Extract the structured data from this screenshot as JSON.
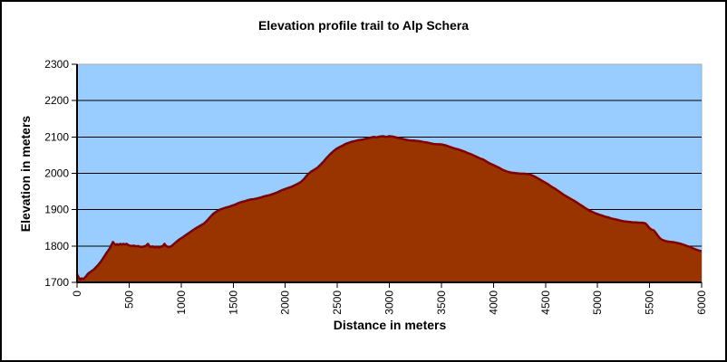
{
  "chart_data": {
    "type": "area",
    "title": "Elevation profile trail to Alp Schera",
    "xlabel": "Distance in meters",
    "ylabel": "Elevation in meters",
    "xlim": [
      0,
      6000
    ],
    "ylim": [
      1700,
      2300
    ],
    "x_ticks": [
      0,
      500,
      1000,
      1500,
      2000,
      2500,
      3000,
      3500,
      4000,
      4500,
      5000,
      5500,
      6000
    ],
    "y_ticks": [
      1700,
      1800,
      1900,
      2000,
      2100,
      2200,
      2300
    ],
    "grid": true,
    "legend": false,
    "colors": {
      "plot_bg": "#99CCFF",
      "plot_border": "#ABABAB",
      "grid": "#000000",
      "axis": "#000000",
      "area_fill": "#993300",
      "profile_line": "#7F0000",
      "frame_border": "#000000",
      "background": "#FFFFFF"
    },
    "series": [
      {
        "name": "Elevation",
        "points": [
          [
            0,
            1722
          ],
          [
            15,
            1714
          ],
          [
            30,
            1708
          ],
          [
            45,
            1711
          ],
          [
            60,
            1709
          ],
          [
            75,
            1713
          ],
          [
            90,
            1718
          ],
          [
            105,
            1724
          ],
          [
            120,
            1727
          ],
          [
            140,
            1731
          ],
          [
            160,
            1735
          ],
          [
            180,
            1741
          ],
          [
            200,
            1747
          ],
          [
            220,
            1754
          ],
          [
            240,
            1762
          ],
          [
            260,
            1771
          ],
          [
            280,
            1780
          ],
          [
            300,
            1788
          ],
          [
            315,
            1794
          ],
          [
            330,
            1803
          ],
          [
            345,
            1811
          ],
          [
            355,
            1807
          ],
          [
            370,
            1803
          ],
          [
            385,
            1805
          ],
          [
            400,
            1803
          ],
          [
            415,
            1806
          ],
          [
            430,
            1804
          ],
          [
            445,
            1806
          ],
          [
            460,
            1804
          ],
          [
            475,
            1806
          ],
          [
            490,
            1803
          ],
          [
            505,
            1801
          ],
          [
            525,
            1800
          ],
          [
            545,
            1801
          ],
          [
            565,
            1799
          ],
          [
            585,
            1800
          ],
          [
            605,
            1798
          ],
          [
            625,
            1797
          ],
          [
            645,
            1799
          ],
          [
            665,
            1801
          ],
          [
            680,
            1806
          ],
          [
            692,
            1801
          ],
          [
            705,
            1797
          ],
          [
            725,
            1799
          ],
          [
            745,
            1796
          ],
          [
            765,
            1798
          ],
          [
            785,
            1796
          ],
          [
            805,
            1798
          ],
          [
            825,
            1800
          ],
          [
            840,
            1806
          ],
          [
            852,
            1801
          ],
          [
            868,
            1798
          ],
          [
            888,
            1797
          ],
          [
            908,
            1800
          ],
          [
            928,
            1805
          ],
          [
            948,
            1810
          ],
          [
            968,
            1815
          ],
          [
            988,
            1819
          ],
          [
            1010,
            1823
          ],
          [
            1040,
            1829
          ],
          [
            1070,
            1835
          ],
          [
            1100,
            1841
          ],
          [
            1130,
            1847
          ],
          [
            1160,
            1852
          ],
          [
            1190,
            1857
          ],
          [
            1220,
            1862
          ],
          [
            1250,
            1870
          ],
          [
            1280,
            1880
          ],
          [
            1310,
            1889
          ],
          [
            1340,
            1895
          ],
          [
            1370,
            1900
          ],
          [
            1400,
            1903
          ],
          [
            1430,
            1906
          ],
          [
            1460,
            1908
          ],
          [
            1490,
            1911
          ],
          [
            1520,
            1914
          ],
          [
            1550,
            1918
          ],
          [
            1580,
            1921
          ],
          [
            1610,
            1923
          ],
          [
            1640,
            1926
          ],
          [
            1670,
            1928
          ],
          [
            1700,
            1929
          ],
          [
            1730,
            1931
          ],
          [
            1760,
            1933
          ],
          [
            1790,
            1936
          ],
          [
            1820,
            1938
          ],
          [
            1850,
            1940
          ],
          [
            1880,
            1943
          ],
          [
            1910,
            1946
          ],
          [
            1940,
            1950
          ],
          [
            1970,
            1954
          ],
          [
            2000,
            1957
          ],
          [
            2030,
            1960
          ],
          [
            2060,
            1963
          ],
          [
            2090,
            1967
          ],
          [
            2120,
            1971
          ],
          [
            2150,
            1976
          ],
          [
            2180,
            1984
          ],
          [
            2200,
            1991
          ],
          [
            2220,
            1998
          ],
          [
            2250,
            2005
          ],
          [
            2280,
            2010
          ],
          [
            2310,
            2016
          ],
          [
            2340,
            2024
          ],
          [
            2370,
            2033
          ],
          [
            2400,
            2043
          ],
          [
            2430,
            2052
          ],
          [
            2460,
            2060
          ],
          [
            2490,
            2067
          ],
          [
            2520,
            2072
          ],
          [
            2550,
            2076
          ],
          [
            2580,
            2081
          ],
          [
            2610,
            2084
          ],
          [
            2640,
            2087
          ],
          [
            2670,
            2089
          ],
          [
            2700,
            2091
          ],
          [
            2730,
            2092
          ],
          [
            2760,
            2094
          ],
          [
            2790,
            2096
          ],
          [
            2820,
            2098
          ],
          [
            2850,
            2100
          ],
          [
            2880,
            2099
          ],
          [
            2910,
            2101
          ],
          [
            2940,
            2102
          ],
          [
            2970,
            2100
          ],
          [
            3000,
            2102
          ],
          [
            3030,
            2101
          ],
          [
            3060,
            2099
          ],
          [
            3090,
            2097
          ],
          [
            3120,
            2095
          ],
          [
            3150,
            2093
          ],
          [
            3180,
            2091
          ],
          [
            3210,
            2090
          ],
          [
            3240,
            2090
          ],
          [
            3270,
            2089
          ],
          [
            3300,
            2088
          ],
          [
            3330,
            2086
          ],
          [
            3360,
            2085
          ],
          [
            3390,
            2083
          ],
          [
            3420,
            2081
          ],
          [
            3450,
            2080
          ],
          [
            3480,
            2080
          ],
          [
            3510,
            2079
          ],
          [
            3540,
            2077
          ],
          [
            3570,
            2074
          ],
          [
            3600,
            2071
          ],
          [
            3630,
            2068
          ],
          [
            3660,
            2066
          ],
          [
            3690,
            2063
          ],
          [
            3720,
            2060
          ],
          [
            3750,
            2056
          ],
          [
            3780,
            2053
          ],
          [
            3810,
            2049
          ],
          [
            3840,
            2045
          ],
          [
            3870,
            2041
          ],
          [
            3900,
            2038
          ],
          [
            3930,
            2033
          ],
          [
            3960,
            2028
          ],
          [
            3990,
            2024
          ],
          [
            4020,
            2020
          ],
          [
            4050,
            2016
          ],
          [
            4080,
            2011
          ],
          [
            4110,
            2007
          ],
          [
            4140,
            2004
          ],
          [
            4170,
            2002
          ],
          [
            4200,
            2001
          ],
          [
            4230,
            2000
          ],
          [
            4260,
            1999
          ],
          [
            4290,
            1999
          ],
          [
            4320,
            1998
          ],
          [
            4350,
            1997
          ],
          [
            4380,
            1993
          ],
          [
            4410,
            1989
          ],
          [
            4440,
            1984
          ],
          [
            4470,
            1979
          ],
          [
            4500,
            1974
          ],
          [
            4530,
            1969
          ],
          [
            4560,
            1963
          ],
          [
            4590,
            1958
          ],
          [
            4620,
            1952
          ],
          [
            4650,
            1946
          ],
          [
            4680,
            1940
          ],
          [
            4710,
            1935
          ],
          [
            4740,
            1930
          ],
          [
            4770,
            1925
          ],
          [
            4800,
            1920
          ],
          [
            4830,
            1914
          ],
          [
            4860,
            1909
          ],
          [
            4890,
            1903
          ],
          [
            4920,
            1898
          ],
          [
            4950,
            1894
          ],
          [
            4980,
            1890
          ],
          [
            5010,
            1887
          ],
          [
            5040,
            1884
          ],
          [
            5070,
            1881
          ],
          [
            5100,
            1879
          ],
          [
            5130,
            1876
          ],
          [
            5160,
            1874
          ],
          [
            5190,
            1872
          ],
          [
            5220,
            1870
          ],
          [
            5250,
            1868
          ],
          [
            5280,
            1867
          ],
          [
            5310,
            1866
          ],
          [
            5340,
            1865
          ],
          [
            5370,
            1865
          ],
          [
            5400,
            1864
          ],
          [
            5430,
            1864
          ],
          [
            5460,
            1862
          ],
          [
            5480,
            1856
          ],
          [
            5500,
            1849
          ],
          [
            5520,
            1845
          ],
          [
            5540,
            1843
          ],
          [
            5560,
            1836
          ],
          [
            5580,
            1828
          ],
          [
            5600,
            1821
          ],
          [
            5620,
            1817
          ],
          [
            5650,
            1814
          ],
          [
            5680,
            1812
          ],
          [
            5710,
            1811
          ],
          [
            5740,
            1810
          ],
          [
            5770,
            1808
          ],
          [
            5800,
            1806
          ],
          [
            5830,
            1803
          ],
          [
            5860,
            1800
          ],
          [
            5890,
            1797
          ],
          [
            5920,
            1793
          ],
          [
            5950,
            1790
          ],
          [
            5980,
            1787
          ],
          [
            6000,
            1786
          ]
        ]
      }
    ]
  }
}
